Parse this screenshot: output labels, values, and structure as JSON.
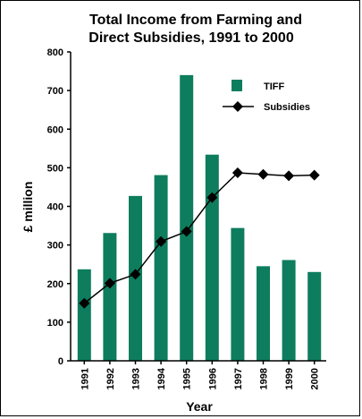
{
  "chart_data": {
    "type": "bar",
    "title": [
      "Total Income from Farming and",
      "Direct Subsidies, 1991 to 2000"
    ],
    "xlabel": "Year",
    "ylabel": "£ million",
    "ylim": [
      0,
      800
    ],
    "yticks": [
      0,
      100,
      200,
      300,
      400,
      500,
      600,
      700,
      800
    ],
    "categories": [
      "1991",
      "1992",
      "1993",
      "1994",
      "1995",
      "1996",
      "1997",
      "1998",
      "1999",
      "2000"
    ],
    "series": [
      {
        "name": "TIFF",
        "type": "bar",
        "color": "#0e7d5d",
        "values": [
          237,
          331,
          427,
          481,
          740,
          534,
          344,
          245,
          261,
          230
        ]
      },
      {
        "name": "Subsidies",
        "type": "line",
        "color": "#000000",
        "marker": "diamond",
        "values": [
          149,
          201,
          224,
          309,
          335,
          423,
          487,
          483,
          479,
          481
        ]
      }
    ],
    "legend_position": "top-right",
    "grid": false
  }
}
